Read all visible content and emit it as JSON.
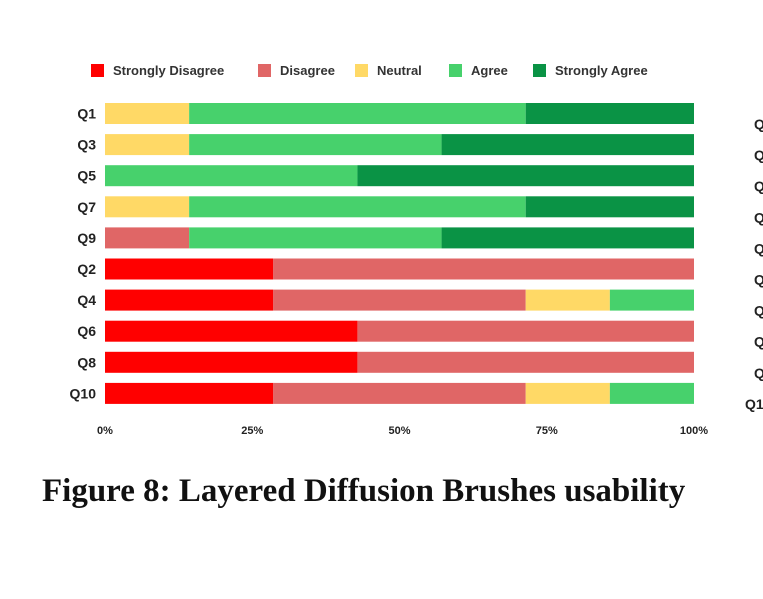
{
  "chart_data": {
    "type": "bar",
    "orientation": "horizontal",
    "stacked": "percent",
    "categories": [
      "Q1",
      "Q3",
      "Q5",
      "Q7",
      "Q9",
      "Q2",
      "Q4",
      "Q6",
      "Q8",
      "Q10"
    ],
    "series": [
      {
        "name": "Strongly Disagree",
        "color": "#ff0000",
        "values": [
          0,
          0,
          0,
          0,
          0,
          2,
          2,
          3,
          3,
          2
        ]
      },
      {
        "name": "Disagree",
        "color": "#e06666",
        "values": [
          0,
          0,
          0,
          0,
          1,
          5,
          3,
          4,
          4,
          3
        ]
      },
      {
        "name": "Neutral",
        "color": "#ffd966",
        "values": [
          1,
          1,
          0,
          1,
          0,
          0,
          1,
          0,
          0,
          1
        ]
      },
      {
        "name": "Agree",
        "color": "#47d16c",
        "values": [
          4,
          3,
          3,
          4,
          3,
          0,
          1,
          0,
          0,
          1
        ]
      },
      {
        "name": "Strongly Agree",
        "color": "#0a9345",
        "values": [
          2,
          3,
          4,
          2,
          3,
          0,
          0,
          0,
          0,
          0
        ]
      }
    ],
    "xticks": [
      "0%",
      "25%",
      "50%",
      "75%",
      "100%"
    ],
    "xlim": [
      0,
      100
    ],
    "legend_position": "top",
    "grid": false
  },
  "ghost_labels": [
    "Q",
    "Q",
    "Q",
    "Q",
    "Q",
    "Q",
    "Q",
    "Q",
    "Q",
    "Q1"
  ],
  "caption": "Figure 8: Layered Diffusion Brushes usability"
}
